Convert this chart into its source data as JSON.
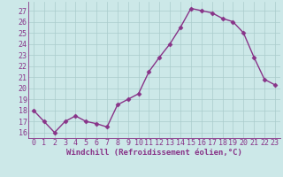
{
  "x": [
    0,
    1,
    2,
    3,
    4,
    5,
    6,
    7,
    8,
    9,
    10,
    11,
    12,
    13,
    14,
    15,
    16,
    17,
    18,
    19,
    20,
    21,
    22,
    23
  ],
  "y": [
    18.0,
    17.0,
    16.0,
    17.0,
    17.5,
    17.0,
    16.8,
    16.5,
    18.5,
    19.0,
    19.5,
    21.5,
    22.8,
    24.0,
    25.5,
    27.2,
    27.0,
    26.8,
    26.3,
    26.0,
    25.0,
    22.8,
    20.8,
    20.3
  ],
  "line_color": "#883388",
  "marker": "D",
  "marker_size": 2.5,
  "bg_color": "#cce8e8",
  "grid_color": "#aacccc",
  "xlabel": "Windchill (Refroidissement éolien,°C)",
  "ylim": [
    15.5,
    27.8
  ],
  "xlim": [
    -0.5,
    23.5
  ],
  "yticks": [
    16,
    17,
    18,
    19,
    20,
    21,
    22,
    23,
    24,
    25,
    26,
    27
  ],
  "xticks": [
    0,
    1,
    2,
    3,
    4,
    5,
    6,
    7,
    8,
    9,
    10,
    11,
    12,
    13,
    14,
    15,
    16,
    17,
    18,
    19,
    20,
    21,
    22,
    23
  ],
  "xlabel_fontsize": 6.5,
  "tick_fontsize": 6.0,
  "linewidth": 1.0
}
